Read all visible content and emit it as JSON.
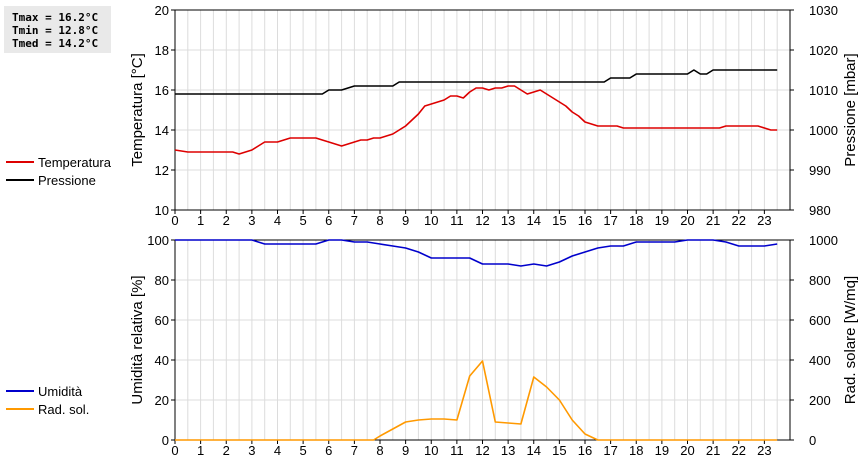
{
  "stats": {
    "tmax": "Tmax = 16.2°C",
    "tmin": "Tmin = 12.8°C",
    "tmed": "Tmed = 14.2°C"
  },
  "colors": {
    "temperature": "#dd0000",
    "pressure": "#000000",
    "humidity": "#0000cc",
    "radiation": "#ff9900",
    "grid": "#dcdcdc"
  },
  "chart_data": [
    {
      "type": "line",
      "xlim": [
        0,
        24
      ],
      "xticks": [
        "0",
        "1",
        "2",
        "3",
        "4",
        "5",
        "6",
        "7",
        "8",
        "9",
        "10",
        "11",
        "12",
        "13",
        "14",
        "15",
        "16",
        "17",
        "18",
        "19",
        "20",
        "21",
        "22",
        "23"
      ],
      "grid": true,
      "legend_position": "left",
      "ylabel_left": "Temperatura [°C]",
      "ylabel_right": "Pressione [mbar]",
      "ylim_left": [
        10,
        20
      ],
      "yticks_left": [
        "10",
        "12",
        "14",
        "16",
        "18",
        "20"
      ],
      "ylim_right": [
        980,
        1030
      ],
      "yticks_right": [
        "980",
        "990",
        "1000",
        "1010",
        "1020",
        "1030"
      ],
      "series": [
        {
          "name": "Temperatura",
          "axis": "left",
          "color": "#dd0000",
          "x": [
            0,
            0.5,
            1,
            1.5,
            2,
            2.25,
            2.5,
            2.75,
            3,
            3.25,
            3.5,
            3.75,
            4,
            4.25,
            4.5,
            4.75,
            5,
            5.25,
            5.5,
            5.75,
            6,
            6.25,
            6.5,
            6.75,
            7,
            7.25,
            7.5,
            7.75,
            8,
            8.25,
            8.5,
            8.75,
            9,
            9.25,
            9.5,
            9.75,
            10,
            10.25,
            10.5,
            10.75,
            11,
            11.25,
            11.5,
            11.75,
            12,
            12.25,
            12.5,
            12.75,
            13,
            13.25,
            13.5,
            13.75,
            14,
            14.25,
            14.5,
            14.75,
            15,
            15.25,
            15.5,
            15.75,
            16,
            16.25,
            16.5,
            16.75,
            17,
            17.25,
            17.5,
            17.75,
            18,
            18.5,
            19,
            19.5,
            20,
            20.5,
            21,
            21.25,
            21.5,
            22,
            22.5,
            22.75,
            23,
            23.25,
            23.5
          ],
          "values": [
            13.0,
            12.9,
            12.9,
            12.9,
            12.9,
            12.9,
            12.8,
            12.9,
            13.0,
            13.2,
            13.4,
            13.4,
            13.4,
            13.5,
            13.6,
            13.6,
            13.6,
            13.6,
            13.6,
            13.5,
            13.4,
            13.3,
            13.2,
            13.3,
            13.4,
            13.5,
            13.5,
            13.6,
            13.6,
            13.7,
            13.8,
            14.0,
            14.2,
            14.5,
            14.8,
            15.2,
            15.3,
            15.4,
            15.5,
            15.7,
            15.7,
            15.6,
            15.9,
            16.1,
            16.1,
            16.0,
            16.1,
            16.1,
            16.2,
            16.2,
            16.0,
            15.8,
            15.9,
            16.0,
            15.8,
            15.6,
            15.4,
            15.2,
            14.9,
            14.7,
            14.4,
            14.3,
            14.2,
            14.2,
            14.2,
            14.2,
            14.1,
            14.1,
            14.1,
            14.1,
            14.1,
            14.1,
            14.1,
            14.1,
            14.1,
            14.1,
            14.2,
            14.2,
            14.2,
            14.2,
            14.1,
            14.0,
            14.0
          ]
        },
        {
          "name": "Pressione",
          "axis": "right",
          "color": "#000000",
          "x": [
            0,
            1,
            2,
            3,
            4,
            5,
            5.5,
            5.75,
            6,
            6.5,
            7,
            7.5,
            8,
            8.25,
            8.5,
            8.75,
            9,
            10,
            11,
            12,
            13,
            14,
            15,
            16,
            16.5,
            16.75,
            17,
            17.25,
            17.5,
            17.75,
            18,
            18.5,
            19,
            19.5,
            20,
            20.25,
            20.5,
            20.75,
            21,
            21.25,
            21.5,
            22,
            22.5,
            23,
            23.5
          ],
          "values": [
            1009,
            1009,
            1009,
            1009,
            1009,
            1009,
            1009,
            1009,
            1010,
            1010,
            1011,
            1011,
            1011,
            1011,
            1011,
            1012,
            1012,
            1012,
            1012,
            1012,
            1012,
            1012,
            1012,
            1012,
            1012,
            1012,
            1013,
            1013,
            1013,
            1013,
            1014,
            1014,
            1014,
            1014,
            1014,
            1015,
            1014,
            1014,
            1015,
            1015,
            1015,
            1015,
            1015,
            1015,
            1015
          ]
        }
      ]
    },
    {
      "type": "line",
      "xlim": [
        0,
        24
      ],
      "xticks": [
        "0",
        "1",
        "2",
        "3",
        "4",
        "5",
        "6",
        "7",
        "8",
        "9",
        "10",
        "11",
        "12",
        "13",
        "14",
        "15",
        "16",
        "17",
        "18",
        "19",
        "20",
        "21",
        "22",
        "23"
      ],
      "grid": true,
      "legend_position": "left",
      "ylabel_left": "Umidità relativa [%]",
      "ylabel_right": "Rad. solare [W/mq]",
      "ylim_left": [
        0,
        100
      ],
      "yticks_left": [
        "0",
        "20",
        "40",
        "60",
        "80",
        "100"
      ],
      "ylim_right": [
        0,
        1000
      ],
      "yticks_right": [
        "0",
        "200",
        "400",
        "600",
        "800",
        "1000"
      ],
      "series": [
        {
          "name": "Umidità",
          "axis": "left",
          "color": "#0000cc",
          "x": [
            0,
            1,
            2,
            3,
            3.5,
            4,
            5,
            5.5,
            6,
            6.5,
            7,
            7.5,
            8,
            8.5,
            9,
            9.5,
            10,
            10.5,
            11,
            11.5,
            12,
            12.5,
            13,
            13.5,
            14,
            14.5,
            15,
            15.5,
            16,
            16.5,
            17,
            17.5,
            18,
            18.5,
            19,
            19.5,
            20,
            20.5,
            21,
            21.5,
            22,
            22.5,
            23,
            23.5
          ],
          "values": [
            100,
            100,
            100,
            100,
            98,
            98,
            98,
            98,
            100,
            100,
            99,
            99,
            98,
            97,
            96,
            94,
            91,
            91,
            91,
            91,
            88,
            88,
            88,
            87,
            88,
            87,
            89,
            92,
            94,
            96,
            97,
            97,
            99,
            99,
            99,
            99,
            100,
            100,
            100,
            99,
            97,
            97,
            97,
            98
          ]
        },
        {
          "name": "Rad. sol.",
          "axis": "right",
          "color": "#ff9900",
          "x": [
            0,
            1,
            2,
            3,
            4,
            5,
            6,
            7,
            7.5,
            7.75,
            8,
            8.5,
            9,
            9.5,
            10,
            10.5,
            11,
            11.5,
            12,
            12.5,
            13,
            13.5,
            14,
            14.5,
            15,
            15.5,
            16,
            16.5,
            17,
            18,
            19,
            20,
            21,
            22,
            23,
            23.5
          ],
          "values": [
            0,
            0,
            0,
            0,
            0,
            0,
            0,
            0,
            0,
            0,
            20,
            55,
            90,
            100,
            105,
            105,
            100,
            320,
            395,
            90,
            85,
            80,
            315,
            265,
            200,
            100,
            30,
            0,
            0,
            0,
            0,
            0,
            0,
            0,
            0,
            0
          ]
        }
      ]
    }
  ]
}
